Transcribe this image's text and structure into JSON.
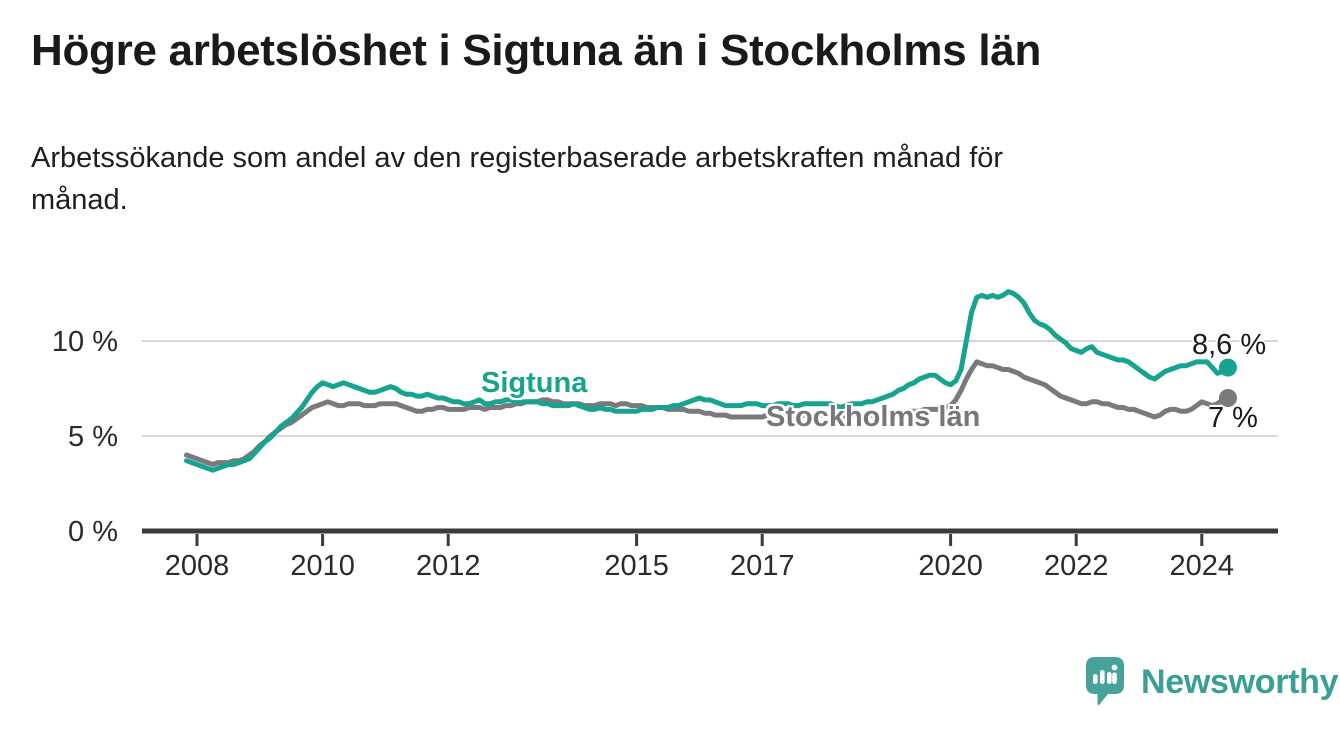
{
  "header": {
    "title": "Högre arbetslöshet i Sigtuna än i Stockholms län",
    "subtitle_line1": "Arbetssökande som andel av den registerbaserade arbetskraften månad för",
    "subtitle_line2": "månad."
  },
  "footer": {
    "brand": "Newsworthy"
  },
  "colors": {
    "accent_teal": "#16a38f",
    "neutral_gray": "#7a7a7e",
    "grid": "#d8d8d8",
    "axis": "#3a3a3a",
    "tick_text": "#2b2b2b",
    "annotation_text": "#1a1a1a",
    "brand_icon": "#48a29c",
    "brand_text": "#3b9e97"
  },
  "chart_data": {
    "type": "line",
    "title": "Högre arbetslöshet i Sigtuna än i Stockholms län",
    "subtitle": "Arbetssökande som andel av den registerbaserade arbetskraften månad för månad.",
    "unit": "%",
    "frequency": "monthly",
    "grid": true,
    "legend_position": "inline-labels",
    "xlim": [
      2007.1,
      2025.2
    ],
    "ylim": [
      0,
      13
    ],
    "x_ticks": [
      2008,
      2010,
      2012,
      2015,
      2017,
      2020,
      2022,
      2024
    ],
    "y_ticks": [
      {
        "value": 0,
        "label": "0 %"
      },
      {
        "value": 5,
        "label": "5 %"
      },
      {
        "value": 10,
        "label": "10 %"
      }
    ],
    "series": [
      {
        "name": "Sigtuna",
        "color": "#16a38f",
        "end_label": "8,6 %",
        "end_value": 8.6,
        "start_year": 2007.8333,
        "values": [
          3.7,
          3.6,
          3.5,
          3.4,
          3.3,
          3.2,
          3.3,
          3.4,
          3.5,
          3.5,
          3.6,
          3.7,
          3.8,
          4.1,
          4.4,
          4.7,
          4.9,
          5.2,
          5.5,
          5.7,
          5.9,
          6.2,
          6.5,
          6.9,
          7.3,
          7.6,
          7.8,
          7.7,
          7.6,
          7.7,
          7.8,
          7.7,
          7.6,
          7.5,
          7.4,
          7.3,
          7.3,
          7.4,
          7.5,
          7.6,
          7.5,
          7.3,
          7.2,
          7.2,
          7.1,
          7.1,
          7.2,
          7.1,
          7.0,
          7.0,
          6.9,
          6.8,
          6.8,
          6.7,
          6.7,
          6.8,
          6.9,
          6.7,
          6.7,
          6.8,
          6.8,
          6.9,
          6.9,
          6.8,
          6.8,
          6.8,
          6.8,
          6.8,
          6.7,
          6.7,
          6.6,
          6.6,
          6.6,
          6.6,
          6.7,
          6.6,
          6.5,
          6.4,
          6.4,
          6.5,
          6.4,
          6.4,
          6.3,
          6.3,
          6.3,
          6.3,
          6.3,
          6.4,
          6.4,
          6.4,
          6.5,
          6.5,
          6.5,
          6.6,
          6.6,
          6.7,
          6.8,
          6.9,
          7.0,
          6.9,
          6.9,
          6.8,
          6.7,
          6.6,
          6.6,
          6.6,
          6.6,
          6.7,
          6.7,
          6.7,
          6.6,
          6.6,
          6.6,
          6.7,
          6.7,
          6.7,
          6.6,
          6.6,
          6.7,
          6.7,
          6.7,
          6.7,
          6.7,
          6.7,
          6.6,
          6.5,
          6.6,
          6.7,
          6.7,
          6.7,
          6.8,
          6.8,
          6.9,
          7.0,
          7.1,
          7.2,
          7.4,
          7.5,
          7.7,
          7.8,
          8.0,
          8.1,
          8.2,
          8.2,
          8.0,
          7.8,
          7.7,
          7.9,
          8.5,
          10.0,
          11.5,
          12.3,
          12.4,
          12.3,
          12.4,
          12.3,
          12.4,
          12.6,
          12.5,
          12.3,
          12.0,
          11.5,
          11.1,
          10.9,
          10.8,
          10.6,
          10.3,
          10.1,
          9.9,
          9.6,
          9.5,
          9.4,
          9.6,
          9.7,
          9.4,
          9.3,
          9.2,
          9.1,
          9.0,
          9.0,
          8.9,
          8.7,
          8.5,
          8.3,
          8.1,
          8.0,
          8.2,
          8.4,
          8.5,
          8.6,
          8.7,
          8.7,
          8.8,
          8.9,
          8.9,
          8.9,
          8.6,
          8.3,
          8.4,
          8.6
        ]
      },
      {
        "name": "Stockholms län",
        "color": "#7a7a7e",
        "end_label": "7 %",
        "end_value": 7.0,
        "start_year": 2007.8333,
        "values": [
          4.0,
          3.9,
          3.8,
          3.7,
          3.6,
          3.5,
          3.6,
          3.6,
          3.6,
          3.7,
          3.7,
          3.8,
          4.0,
          4.2,
          4.5,
          4.7,
          5.0,
          5.2,
          5.4,
          5.6,
          5.7,
          5.9,
          6.1,
          6.3,
          6.5,
          6.6,
          6.7,
          6.8,
          6.7,
          6.6,
          6.6,
          6.7,
          6.7,
          6.7,
          6.6,
          6.6,
          6.6,
          6.7,
          6.7,
          6.7,
          6.7,
          6.6,
          6.5,
          6.4,
          6.3,
          6.3,
          6.4,
          6.4,
          6.5,
          6.5,
          6.4,
          6.4,
          6.4,
          6.4,
          6.5,
          6.5,
          6.5,
          6.4,
          6.5,
          6.5,
          6.5,
          6.6,
          6.6,
          6.7,
          6.7,
          6.8,
          6.8,
          6.8,
          6.9,
          6.9,
          6.8,
          6.8,
          6.7,
          6.7,
          6.7,
          6.7,
          6.6,
          6.6,
          6.6,
          6.7,
          6.7,
          6.7,
          6.6,
          6.7,
          6.7,
          6.6,
          6.6,
          6.6,
          6.5,
          6.5,
          6.5,
          6.5,
          6.4,
          6.4,
          6.4,
          6.4,
          6.3,
          6.3,
          6.3,
          6.2,
          6.2,
          6.1,
          6.1,
          6.1,
          6.0,
          6.0,
          6.0,
          6.0,
          6.0,
          6.0,
          6.0,
          6.1,
          6.1,
          6.2,
          6.1,
          6.1,
          6.1,
          6.0,
          6.1,
          6.1,
          6.1,
          6.1,
          6.1,
          6.1,
          6.0,
          6.0,
          6.1,
          6.1,
          6.1,
          6.1,
          6.1,
          6.1,
          6.1,
          6.1,
          6.1,
          6.2,
          6.2,
          6.2,
          6.3,
          6.3,
          6.3,
          6.4,
          6.4,
          6.4,
          6.4,
          6.5,
          6.6,
          6.9,
          7.4,
          8.0,
          8.5,
          8.9,
          8.8,
          8.7,
          8.7,
          8.6,
          8.5,
          8.5,
          8.4,
          8.3,
          8.1,
          8.0,
          7.9,
          7.8,
          7.7,
          7.5,
          7.3,
          7.1,
          7.0,
          6.9,
          6.8,
          6.7,
          6.7,
          6.8,
          6.8,
          6.7,
          6.7,
          6.6,
          6.5,
          6.5,
          6.4,
          6.4,
          6.3,
          6.2,
          6.1,
          6.0,
          6.1,
          6.3,
          6.4,
          6.4,
          6.3,
          6.3,
          6.4,
          6.6,
          6.8,
          6.7,
          6.6,
          6.7,
          6.9,
          7.0
        ]
      }
    ]
  }
}
